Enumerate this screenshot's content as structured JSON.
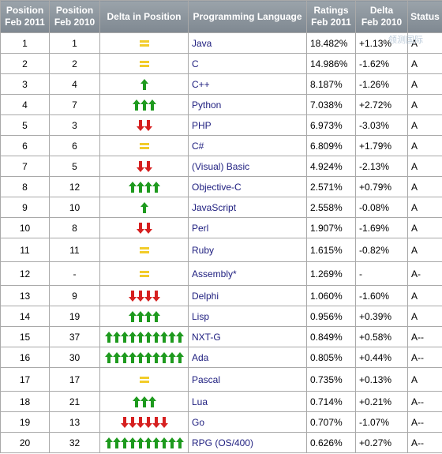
{
  "headers": {
    "pos2011": [
      "Position",
      "Feb 2011"
    ],
    "pos2010": [
      "Position",
      "Feb 2010"
    ],
    "delta_pos": "Delta in Position",
    "language": "Programming Language",
    "ratings": [
      "Ratings",
      "Feb 2011"
    ],
    "delta": [
      "Delta",
      "Feb 2010"
    ],
    "status": "Status"
  },
  "watermark": "领测国际",
  "colors": {
    "up": "#1e9a1e",
    "down": "#d62020",
    "equal": "#f2cc2a",
    "header": "#8a939b"
  },
  "rows": [
    {
      "p2011": "1",
      "p2010": "1",
      "trend": "equal",
      "count": 1,
      "lang": "Java",
      "rating": "18.482%",
      "delta": "+1.13%",
      "status": "A"
    },
    {
      "p2011": "2",
      "p2010": "2",
      "trend": "equal",
      "count": 1,
      "lang": "C",
      "rating": "14.986%",
      "delta": "-1.62%",
      "status": "A"
    },
    {
      "p2011": "3",
      "p2010": "4",
      "trend": "up",
      "count": 1,
      "lang": "C++",
      "rating": "8.187%",
      "delta": "-1.26%",
      "status": "A"
    },
    {
      "p2011": "4",
      "p2010": "7",
      "trend": "up",
      "count": 3,
      "lang": "Python",
      "rating": "7.038%",
      "delta": "+2.72%",
      "status": "A"
    },
    {
      "p2011": "5",
      "p2010": "3",
      "trend": "down",
      "count": 2,
      "lang": "PHP",
      "rating": "6.973%",
      "delta": "-3.03%",
      "status": "A"
    },
    {
      "p2011": "6",
      "p2010": "6",
      "trend": "equal",
      "count": 1,
      "lang": "C#",
      "rating": "6.809%",
      "delta": "+1.79%",
      "status": "A"
    },
    {
      "p2011": "7",
      "p2010": "5",
      "trend": "down",
      "count": 2,
      "lang": "(Visual) Basic",
      "rating": "4.924%",
      "delta": "-2.13%",
      "status": "A"
    },
    {
      "p2011": "8",
      "p2010": "12",
      "trend": "up",
      "count": 4,
      "lang": "Objective-C",
      "rating": "2.571%",
      "delta": "+0.79%",
      "status": "A"
    },
    {
      "p2011": "9",
      "p2010": "10",
      "trend": "up",
      "count": 1,
      "lang": "JavaScript",
      "rating": "2.558%",
      "delta": "-0.08%",
      "status": "A"
    },
    {
      "p2011": "10",
      "p2010": "8",
      "trend": "down",
      "count": 2,
      "lang": "Perl",
      "rating": "1.907%",
      "delta": "-1.69%",
      "status": "A"
    },
    {
      "p2011": "11",
      "p2010": "11",
      "trend": "equal",
      "count": 1,
      "lang": "Ruby",
      "rating": "1.615%",
      "delta": "-0.82%",
      "status": "A"
    },
    {
      "p2011": "12",
      "p2010": "-",
      "trend": "equal",
      "count": 1,
      "lang": "Assembly*",
      "rating": "1.269%",
      "delta": "-",
      "status": "A-"
    },
    {
      "p2011": "13",
      "p2010": "9",
      "trend": "down",
      "count": 4,
      "lang": "Delphi",
      "rating": "1.060%",
      "delta": "-1.60%",
      "status": "A"
    },
    {
      "p2011": "14",
      "p2010": "19",
      "trend": "up",
      "count": 4,
      "lang": "Lisp",
      "rating": "0.956%",
      "delta": "+0.39%",
      "status": "A"
    },
    {
      "p2011": "15",
      "p2010": "37",
      "trend": "up",
      "count": 10,
      "lang": "NXT-G",
      "rating": "0.849%",
      "delta": "+0.58%",
      "status": "A--"
    },
    {
      "p2011": "16",
      "p2010": "30",
      "trend": "up",
      "count": 10,
      "lang": "Ada",
      "rating": "0.805%",
      "delta": "+0.44%",
      "status": "A--"
    },
    {
      "p2011": "17",
      "p2010": "17",
      "trend": "equal",
      "count": 1,
      "lang": "Pascal",
      "rating": "0.735%",
      "delta": "+0.13%",
      "status": "A"
    },
    {
      "p2011": "18",
      "p2010": "21",
      "trend": "up",
      "count": 3,
      "lang": "Lua",
      "rating": "0.714%",
      "delta": "+0.21%",
      "status": "A--"
    },
    {
      "p2011": "19",
      "p2010": "13",
      "trend": "down",
      "count": 6,
      "lang": "Go",
      "rating": "0.707%",
      "delta": "-1.07%",
      "status": "A--"
    },
    {
      "p2011": "20",
      "p2010": "32",
      "trend": "up",
      "count": 10,
      "lang": "RPG (OS/400)",
      "rating": "0.626%",
      "delta": "+0.27%",
      "status": "A--"
    }
  ]
}
